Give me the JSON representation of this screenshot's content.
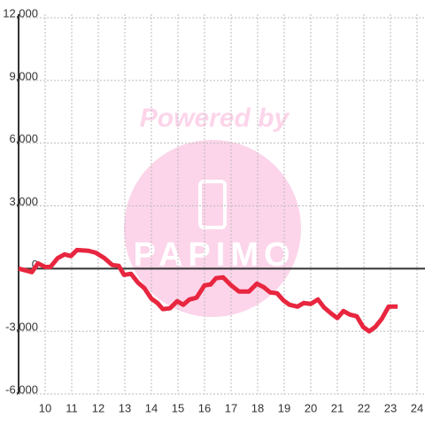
{
  "chart_data": {
    "type": "line",
    "watermark": {
      "text": "Powered by",
      "logo": "PAPIMO"
    },
    "x": [
      9.0,
      9.5,
      9.73,
      10.0,
      10.2,
      10.47,
      10.73,
      10.97,
      11.2,
      11.63,
      11.9,
      12.23,
      12.53,
      12.77,
      12.97,
      13.23,
      13.5,
      13.73,
      14.0,
      14.23,
      14.43,
      14.7,
      14.97,
      15.2,
      15.43,
      15.7,
      16.0,
      16.23,
      16.43,
      16.7,
      17.0,
      17.3,
      17.67,
      17.97,
      18.23,
      18.47,
      18.73,
      18.97,
      19.2,
      19.5,
      19.73,
      20.0,
      20.27,
      20.5,
      20.77,
      21.0,
      21.23,
      21.47,
      21.73,
      21.97,
      22.2,
      22.43,
      22.67,
      22.93,
      23.27
    ],
    "series": [
      {
        "color": "#e8263f",
        "values": [
          0,
          -170,
          250,
          80,
          80,
          500,
          680,
          600,
          890,
          850,
          760,
          500,
          170,
          130,
          -300,
          -250,
          -680,
          -930,
          -1440,
          -1650,
          -1940,
          -1900,
          -1560,
          -1730,
          -1480,
          -1390,
          -800,
          -760,
          -460,
          -420,
          -800,
          -1100,
          -1100,
          -720,
          -890,
          -1140,
          -1180,
          -1520,
          -1730,
          -1820,
          -1650,
          -1690,
          -1480,
          -1860,
          -2150,
          -2370,
          -2030,
          -2200,
          -2280,
          -2790,
          -3000,
          -2790,
          -2410,
          -1820,
          -1820
        ]
      }
    ],
    "xlim": [
      9,
      24.3
    ],
    "xticks": [
      10,
      11,
      12,
      13,
      14,
      15,
      16,
      17,
      18,
      19,
      20,
      21,
      22,
      23,
      24
    ],
    "ylim": [
      -6000,
      12000
    ],
    "yticks": [
      {
        "value": -6000,
        "label": "-6,000"
      },
      {
        "value": -3000,
        "label": "-3,000"
      },
      0,
      {
        "value": 3000,
        "label": "3,000"
      },
      {
        "value": 6000,
        "label": "6,000"
      },
      {
        "value": 9000,
        "label": "9,000"
      },
      {
        "value": 12000,
        "label": "12,000"
      }
    ],
    "grid": true
  }
}
